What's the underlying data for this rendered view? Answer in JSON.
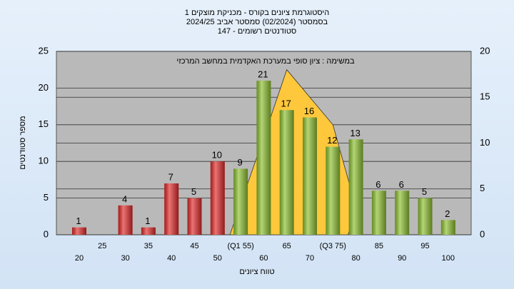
{
  "chart_data": {
    "type": "bar",
    "title": [
      "היסטוגרמת ציונים בקורס - מכניקת מוצקים 1",
      "בסמסטר  (02/2024)  סמסטר אביב 2024/25",
      "סטודנטים רשומים - 147"
    ],
    "annotation": "במשימה : ציון סופי במערכת האקדמית במחשב המרכזי",
    "y_label": "מספר סטודנטים",
    "x_label": "טווח ציונים",
    "categories": [
      "20",
      "25",
      "30",
      "35",
      "40",
      "45",
      "50",
      "(Q1 55)",
      "60",
      "65",
      "70",
      "(Q3 75)",
      "80",
      "85",
      "90",
      "95",
      "100"
    ],
    "values": [
      1,
      null,
      4,
      1,
      7,
      5,
      10,
      9,
      21,
      17,
      16,
      12,
      13,
      6,
      6,
      5,
      2
    ],
    "colors": [
      "#e02828",
      "#e02828",
      "#e02828",
      "#e02828",
      "#e02828",
      "#e02828",
      "#e02828",
      "#8cbf2e",
      "#8cbf2e",
      "#8cbf2e",
      "#8cbf2e",
      "#8cbf2e",
      "#8cbf2e",
      "#8cbf2e",
      "#8cbf2e",
      "#8cbf2e",
      "#8cbf2e"
    ],
    "distribution": {
      "axis": "y2",
      "color": "#ffc83c",
      "values": [
        null,
        null,
        null,
        null,
        null,
        null,
        null,
        3.4,
        10.6,
        18,
        15,
        12,
        3,
        null,
        null,
        null,
        null
      ]
    },
    "ylim": [
      0,
      25
    ],
    "yticks": [
      0,
      5,
      10,
      15,
      20,
      25
    ],
    "y2lim": [
      0,
      20
    ],
    "y2ticks": [
      0,
      5,
      10,
      15,
      20
    ],
    "grid": true
  }
}
